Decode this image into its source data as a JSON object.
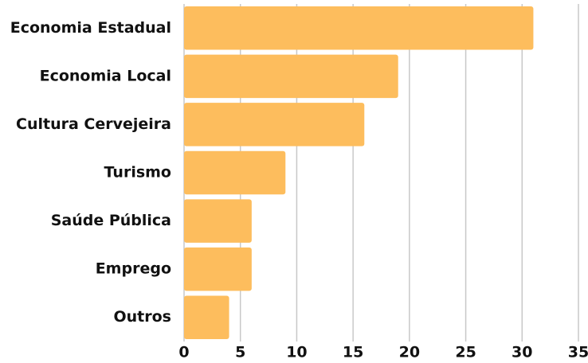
{
  "chart_data": {
    "type": "barh",
    "categories": [
      "Economia Estadual",
      "Economia Local",
      "Cultura Cervejeira",
      "Turismo",
      "Saúde Pública",
      "Emprego",
      "Outros"
    ],
    "values": [
      31,
      19,
      16,
      9,
      6,
      6,
      4
    ],
    "color": "#fdbd5d",
    "xlim": [
      0,
      35
    ],
    "xticks": [
      0,
      5,
      10,
      15,
      20,
      25,
      30,
      35
    ],
    "grid": true
  }
}
